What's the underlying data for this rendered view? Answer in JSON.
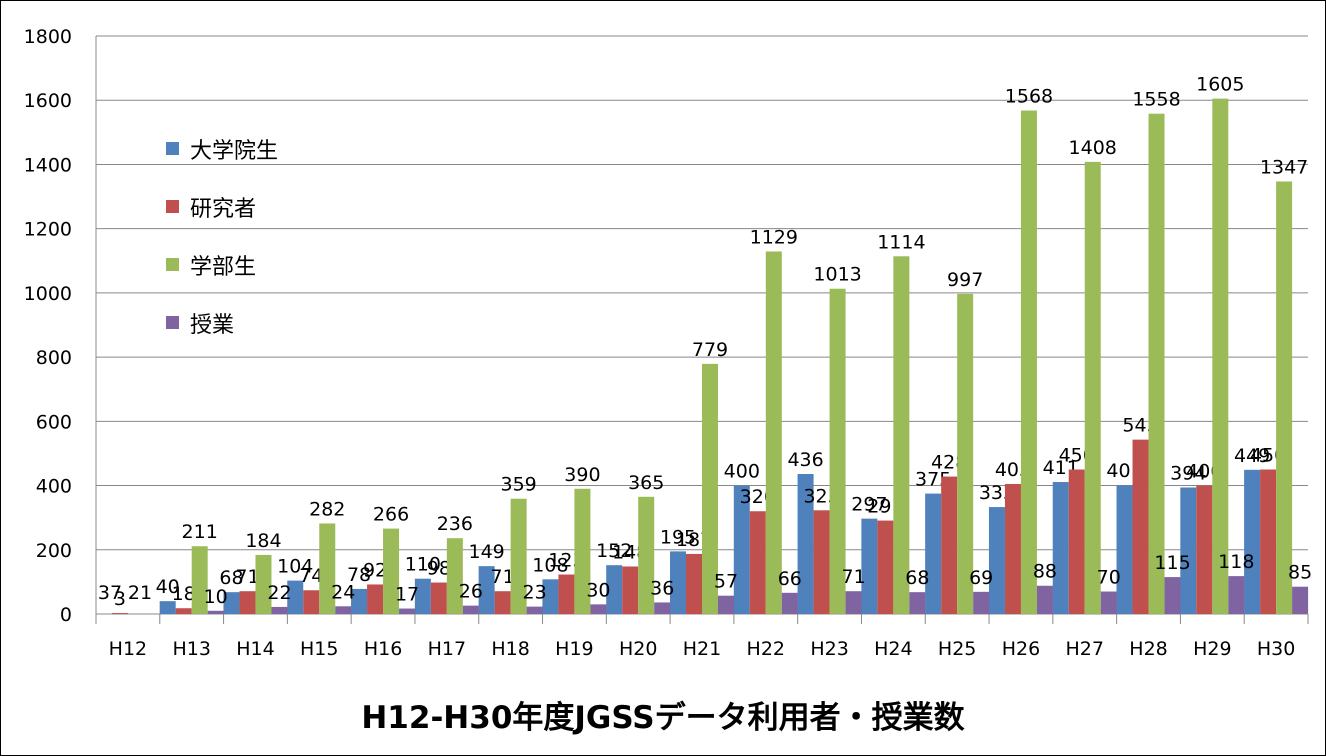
{
  "chart_data": {
    "type": "bar",
    "title": "H12-H30年度JGSSデータ利用者・授業数",
    "xlabel": "",
    "ylabel": "",
    "ylim": [
      0,
      1800
    ],
    "yticks": [
      "0",
      "200",
      "400",
      "600",
      "800",
      "1000",
      "1200",
      "1400",
      "1600",
      "1800"
    ],
    "grid": true,
    "legend_position": "left",
    "categories": [
      "H12",
      "H13",
      "H14",
      "H15",
      "H16",
      "H17",
      "H18",
      "H19",
      "H20",
      "H21",
      "H22",
      "H23",
      "H24",
      "H25",
      "H26",
      "H27",
      "H28",
      "H29",
      "H30"
    ],
    "series": [
      {
        "name": "大学院生",
        "color": "#4f81bd",
        "values": [
          null,
          40,
          68,
          104,
          78,
          110,
          149,
          108,
          152,
          195,
          400,
          436,
          297,
          375,
          333,
          411,
          401,
          394,
          449
        ]
      },
      {
        "name": "研究者",
        "color": "#c0504d",
        "values": [
          3,
          18,
          71,
          74,
          92,
          98,
          71,
          123,
          148,
          187,
          320,
          323,
          291,
          428,
          405,
          450,
          543,
          400,
          450
        ]
      },
      {
        "name": "学部生",
        "color": "#9bbb59",
        "values": [
          null,
          211,
          184,
          282,
          266,
          236,
          359,
          390,
          365,
          779,
          1129,
          1013,
          1114,
          997,
          1568,
          1408,
          1558,
          1605,
          1347
        ]
      },
      {
        "name": "授業",
        "color": "#8064a2",
        "values": [
          null,
          10,
          22,
          24,
          17,
          26,
          23,
          30,
          36,
          57,
          66,
          71,
          68,
          69,
          88,
          70,
          115,
          118,
          85
        ]
      }
    ],
    "annotations": [
      "37",
      "21"
    ]
  }
}
